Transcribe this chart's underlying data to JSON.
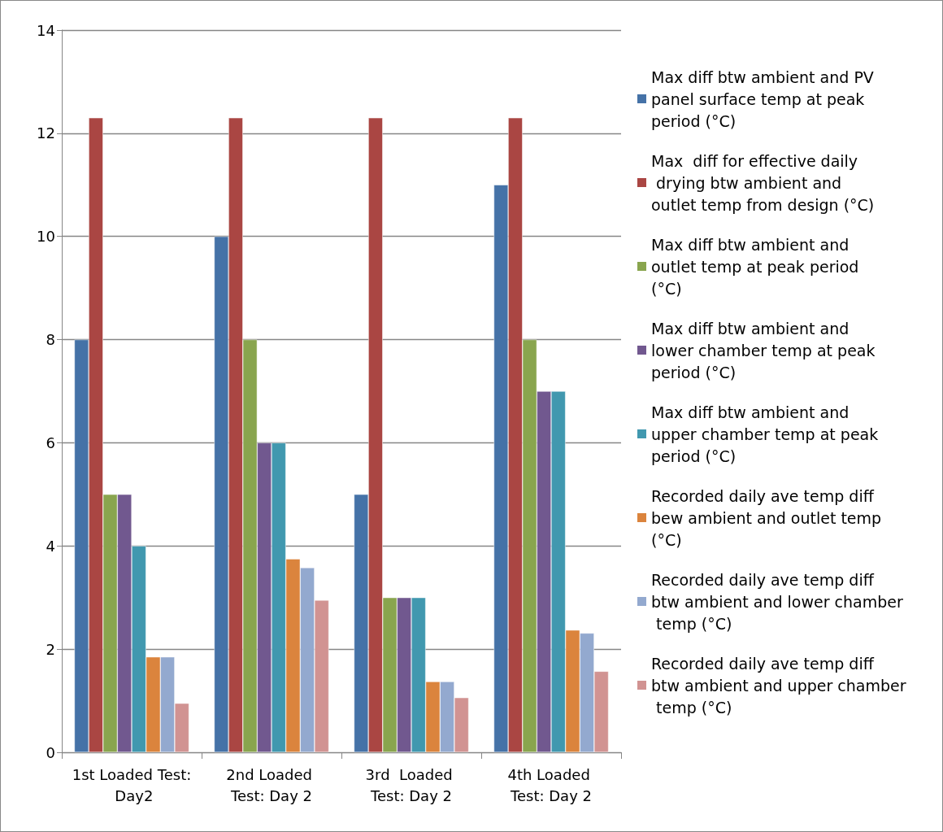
{
  "chart_data": {
    "type": "bar",
    "categories": [
      "1st Loaded Test: Day2",
      "2nd Loaded Test: Day 2",
      "3rd  Loaded Test: Day 2",
      "4th Loaded Test: Day 2"
    ],
    "series": [
      {
        "name": "Max diff btw ambient and PV panel surface temp at peak period (°C)",
        "color": "#4572a7",
        "values": [
          8,
          10,
          5,
          11
        ]
      },
      {
        "name": "Max  diff for effective daily drying btw ambient and outlet temp from design (°C)",
        "color": "#aa4643",
        "values": [
          12.3,
          12.3,
          12.3,
          12.3
        ]
      },
      {
        "name": "Max diff btw ambient and outlet temp at peak period (°C)",
        "color": "#89a54e",
        "values": [
          5,
          8,
          3,
          8
        ]
      },
      {
        "name": "Max diff btw ambient and lower chamber temp at peak period (°C)",
        "color": "#71588f",
        "values": [
          5,
          6,
          3,
          7
        ]
      },
      {
        "name": "Max diff btw ambient and upper chamber temp at peak period (°C)",
        "color": "#4198af",
        "values": [
          4,
          6,
          3,
          7
        ]
      },
      {
        "name": "Recorded daily ave temp diff bew ambient and outlet temp (°C)",
        "color": "#db843d",
        "values": [
          1.85,
          3.75,
          1.37,
          2.37
        ]
      },
      {
        "name": "Recorded daily ave temp diff btw ambient and lower chamber temp (°C)",
        "color": "#93a9cf",
        "values": [
          1.85,
          3.58,
          1.37,
          2.31
        ]
      },
      {
        "name": "Recorded daily ave temp diff btw ambient and upper chamber temp (°C)",
        "color": "#d19392",
        "values": [
          0.95,
          2.95,
          1.06,
          1.57
        ]
      }
    ],
    "ylim": [
      0,
      14
    ],
    "yticks": [
      0,
      2,
      4,
      6,
      8,
      10,
      12,
      14
    ],
    "grid": "y",
    "legend": "right"
  }
}
